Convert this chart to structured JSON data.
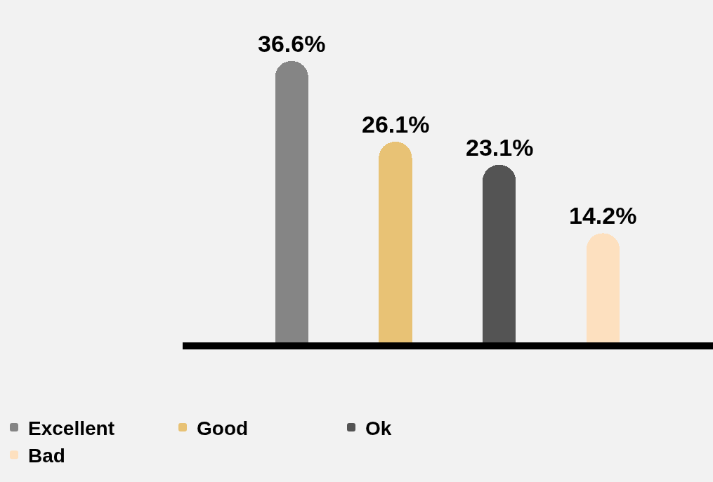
{
  "chart_data": {
    "type": "bar",
    "categories": [
      null,
      null,
      null,
      null
    ],
    "stacked": true,
    "series": [
      {
        "name": "Excellent",
        "color": "#858585",
        "values": [
          36.6,
          null,
          null,
          null
        ],
        "value_labels": [
          "36.6%",
          null,
          null,
          null
        ]
      },
      {
        "name": "Good",
        "color": "#e8c275",
        "values": [
          null,
          26.1,
          null,
          null
        ],
        "value_labels": [
          null,
          "26.1%",
          null,
          null
        ]
      },
      {
        "name": "Ok",
        "color": "#545454",
        "values": [
          null,
          null,
          23.1,
          null
        ],
        "value_labels": [
          null,
          null,
          "23.1%",
          null
        ]
      },
      {
        "name": "Bad",
        "color": "#fde0bf",
        "values": [
          null,
          null,
          null,
          14.2
        ],
        "value_labels": [
          null,
          null,
          null,
          "14.2%"
        ]
      }
    ],
    "legend": "bottom"
  }
}
